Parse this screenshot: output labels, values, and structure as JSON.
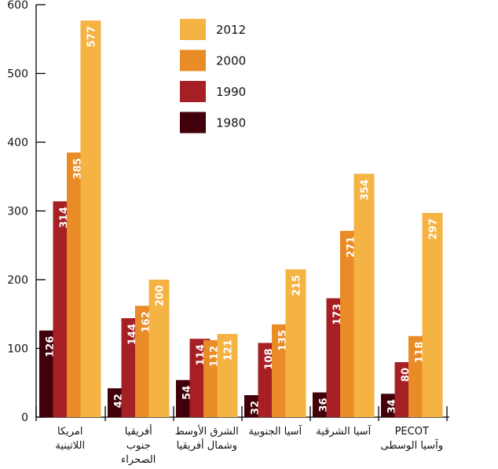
{
  "chart_data": {
    "type": "bar",
    "title": "",
    "xlabel": "",
    "ylabel": "",
    "ylim": [
      0,
      600
    ],
    "yticks": [
      0,
      100,
      200,
      300,
      400,
      500,
      600
    ],
    "legend_placement": "top-center",
    "categories": [
      [
        "امريكا",
        "اللاتينية"
      ],
      [
        "أفريقيا",
        "جنوب",
        "الصحراء"
      ],
      [
        "الشرق الأوسط",
        "وشمال أفريقيا"
      ],
      [
        "آسيا الجنوبية"
      ],
      [
        "آسيا الشرقية"
      ],
      [
        "PECOT",
        "وآسيا الوسطى"
      ]
    ],
    "series": [
      {
        "name": "1980",
        "color": "#42000A",
        "values": [
          126,
          42,
          54,
          32,
          36,
          34
        ]
      },
      {
        "name": "1990",
        "color": "#A61F24",
        "values": [
          314,
          144,
          114,
          108,
          173,
          80
        ]
      },
      {
        "name": "2000",
        "color": "#E98B26",
        "values": [
          385,
          162,
          112,
          135,
          271,
          118
        ]
      },
      {
        "name": "2012",
        "color": "#F4B342",
        "values": [
          577,
          200,
          121,
          215,
          354,
          297
        ]
      }
    ],
    "legend_order": [
      "2012",
      "2000",
      "1990",
      "1980"
    ]
  }
}
